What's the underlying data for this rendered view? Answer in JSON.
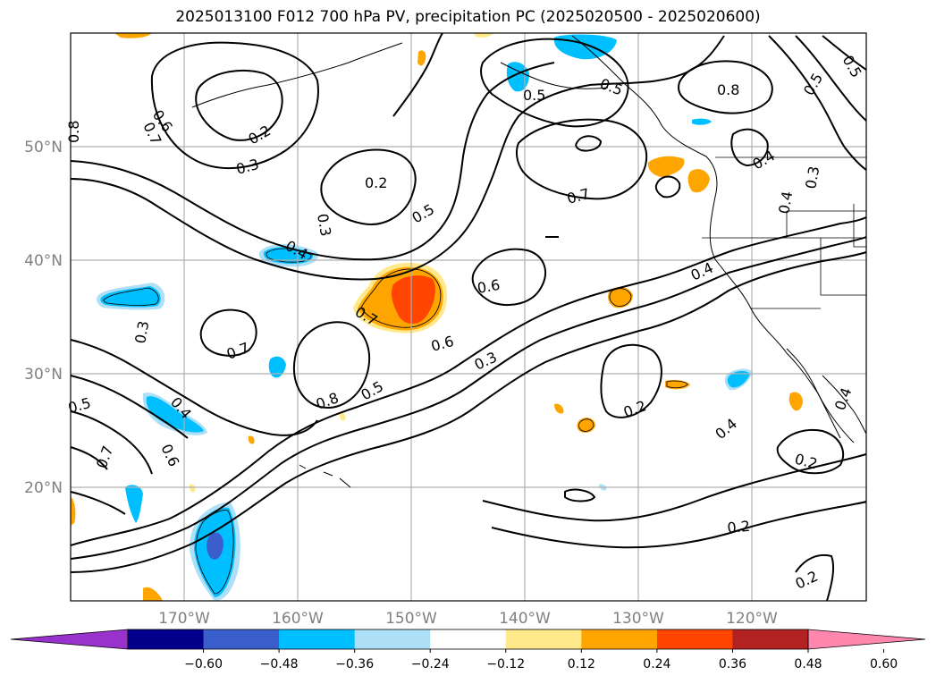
{
  "title": "2025013100 F012 700 hPa PV, precipitation PC (2025020500 - 2025020600)",
  "map": {
    "lon_ticks": [
      "170°W",
      "160°W",
      "150°W",
      "140°W",
      "130°W",
      "120°W"
    ],
    "lat_ticks": [
      "50°N",
      "40°N",
      "30°N",
      "20°N"
    ],
    "lon_range": [
      -180,
      -110
    ],
    "lat_range": [
      10,
      60
    ],
    "grid": true,
    "contour_color": "#000000",
    "contour_labels": [
      "0.8",
      "0.7",
      "0.6",
      "0.2",
      "0.3",
      "0.2",
      "0.3",
      "0.4",
      "0.5",
      "0.5",
      "0.8",
      "0.5",
      "0.7",
      "0.7",
      "0.4",
      "0.6",
      "0.6",
      "0.3",
      "0.3",
      "0.7",
      "0.8",
      "0.5",
      "0.5",
      "0.4",
      "0.6",
      "0.7",
      "0.2",
      "0.4",
      "0.2",
      "0.2",
      "0.2",
      "0.4",
      "0.5",
      "0.4",
      "0.4",
      "0.3",
      "0.5"
    ]
  },
  "colorbar": {
    "ticks": [
      "−0.60",
      "−0.48",
      "−0.36",
      "−0.24",
      "−0.12",
      "0.12",
      "0.24",
      "0.36",
      "0.48",
      "0.60"
    ],
    "colors": [
      "#9932CC",
      "#00008B",
      "#3A5FCD",
      "#00BFFF",
      "#ADE0F7",
      "#FFFFFF",
      "#FFE98A",
      "#FFA500",
      "#FF4500",
      "#B22222",
      "#FF86AC"
    ],
    "extend": "both"
  }
}
